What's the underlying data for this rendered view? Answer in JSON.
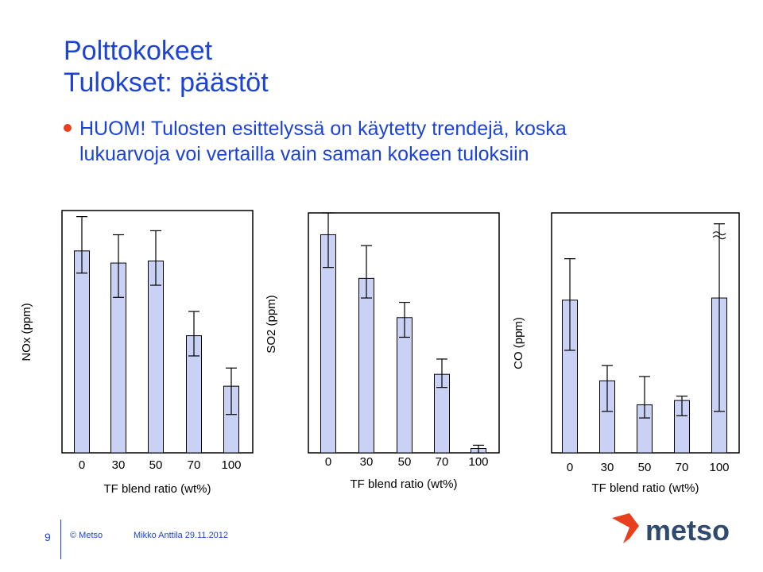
{
  "slide": {
    "title_line1": "Polttokokeet",
    "title_line2": "Tulokset: päästöt",
    "note_line1": "HUOM! Tulosten esittelyssä on käytetty trendejä, koska",
    "note_line2": "lukuarvoja voi vertailla vain saman kokeen tuloksiin",
    "accent_color": "#1c43d6",
    "bullet_color": "#e8401c"
  },
  "footer": {
    "page_number": "9",
    "copyright": "© Metso",
    "author_date": "Mikko Anttila 29.11.2012",
    "logo_text": "metso",
    "logo_color": "#2f4a6e",
    "logo_accent": "#e8401c"
  },
  "chart_data": [
    {
      "type": "bar",
      "ylabel": "NOx (ppm)",
      "xlabel": "TF blend ratio (wt%)",
      "categories": [
        "0",
        "30",
        "50",
        "70",
        "100"
      ],
      "values": [
        100,
        94,
        95,
        58,
        33
      ],
      "error_low": [
        89,
        77,
        83,
        48,
        19
      ],
      "error_high": [
        117,
        108,
        110,
        70,
        42
      ],
      "ylim": [
        0,
        120
      ],
      "bar_color": "#c9d2f5",
      "grid": false,
      "y_ticks_shown": false
    },
    {
      "type": "bar",
      "ylabel": "SO2 (ppm)",
      "xlabel": "TF blend ratio (wt%)",
      "categories": [
        "0",
        "30",
        "50",
        "70",
        "100"
      ],
      "values": [
        100,
        80,
        62,
        36,
        2
      ],
      "error_low": [
        85,
        71,
        53,
        30,
        0
      ],
      "error_high": [
        110,
        95,
        69,
        43,
        3.5
      ],
      "ylim": [
        0,
        110
      ],
      "bar_color": "#c9d2f5",
      "grid": false,
      "y_ticks_shown": false
    },
    {
      "type": "bar",
      "ylabel": "CO (ppm)",
      "xlabel": "TF blend ratio (wt%)",
      "categories": [
        "0",
        "30",
        "50",
        "70",
        "100"
      ],
      "values": [
        70,
        33,
        22,
        24,
        71
      ],
      "error_low": [
        47,
        19,
        16,
        17,
        19
      ],
      "error_high": [
        89,
        40,
        35,
        26,
        105
      ],
      "ylim": [
        0,
        110
      ],
      "bar_color": "#c9d2f5",
      "grid": false,
      "y_ticks_shown": false,
      "axis_break_on_last_error": true
    }
  ]
}
